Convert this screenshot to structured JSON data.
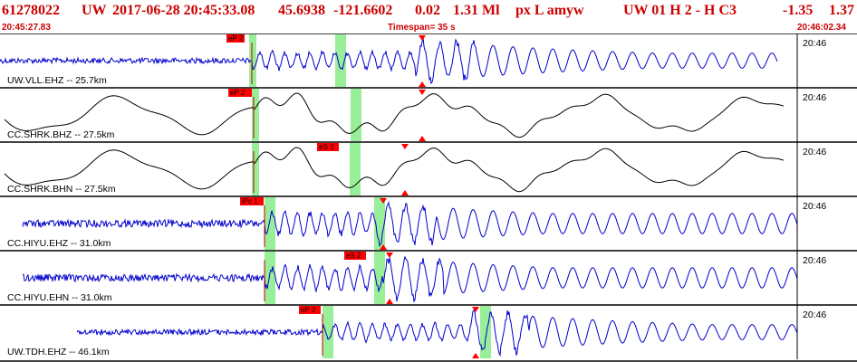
{
  "header": {
    "evid": "61278022",
    "net": "UW",
    "datetime": "2017-06-28 20:45:33.08",
    "lat": "45.6938",
    "lon": "-121.6602",
    "depth": "0.02",
    "mag": "1.31 Ml",
    "flags": "px  L amyw",
    "station_info": "UW 01  H   2  -  H C3",
    "extra1": "-1.35",
    "extra2": "1.37",
    "start_time": "20:45:27.83",
    "timespan": "Timespan=  35 s",
    "end_time": "20:46:02.34"
  },
  "colors": {
    "header_text": "#cc0000",
    "waveform": "#0000cc",
    "pick_box": "#ff0000",
    "pick_line": "#cc0000",
    "window": "#99ee99",
    "grid": "#000000"
  },
  "traces": [
    {
      "label": "UW.VLL.EHZ -- 25.7km",
      "time": "20:46",
      "waveform_color": "#0000cc",
      "pick_label": "eP 2",
      "s_label": "",
      "style": "noisy"
    },
    {
      "label": "CC.SHRK.BHZ -- 27.5km",
      "time": "20:46",
      "waveform_color": "#000000",
      "pick_label": "eP 2",
      "s_label": "",
      "style": "smooth"
    },
    {
      "label": "CC.SHRK.BHN -- 27.5km",
      "time": "20:46",
      "waveform_color": "#000000",
      "pick_label": "eS 2",
      "s_label": "",
      "style": "smooth"
    },
    {
      "label": "CC.HIYU.EHZ -- 31.0km",
      "time": "20:46",
      "waveform_color": "#0000cc",
      "pick_label": "iPc 1",
      "s_label": "",
      "style": "noisy"
    },
    {
      "label": "CC.HIYU.EHN -- 31.0km",
      "time": "20:46",
      "waveform_color": "#0000cc",
      "pick_label": "eS 2",
      "s_label": "",
      "style": "noisy"
    },
    {
      "label": "UW.TDH.EHZ -- 46.1km",
      "time": "20:46",
      "waveform_color": "#0000cc",
      "pick_label": "eP 2",
      "s_label": "",
      "style": "noisy"
    }
  ]
}
